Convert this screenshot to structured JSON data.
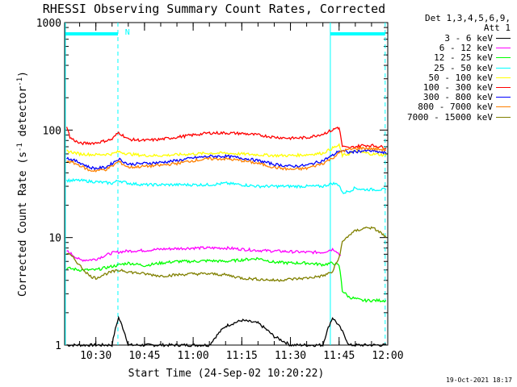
{
  "chart_data": {
    "type": "line",
    "title": "RHESSI Observing Summary Count Rates, Corrected",
    "xlabel": "Start Time (24-Sep-02 10:20:22)",
    "ylabel_parts": [
      "Corrected Count Rate (s",
      "-1",
      " detector",
      "-1",
      ")"
    ],
    "x_range_min": [
      20.37,
      120
    ],
    "y_range": [
      1,
      1000
    ],
    "y_scale": "log",
    "x_ticks": [
      {
        "min": 30,
        "label": "10:30"
      },
      {
        "min": 45,
        "label": "10:45"
      },
      {
        "min": 60,
        "label": "11:00"
      },
      {
        "min": 75,
        "label": "11:15"
      },
      {
        "min": 90,
        "label": "11:30"
      },
      {
        "min": 105,
        "label": "11:45"
      },
      {
        "min": 120,
        "label": "12:00"
      }
    ],
    "y_ticks": [
      {
        "val": 1,
        "label": "1"
      },
      {
        "val": 10,
        "label": "10"
      },
      {
        "val": 100,
        "label": "100"
      },
      {
        "val": 1000,
        "label": "1000"
      }
    ],
    "legend_header": [
      "Det 1,3,4,5,6,9,",
      "Att 1"
    ],
    "series": [
      {
        "name": "3 - 6 keV",
        "color": "#000000",
        "x": [
          21,
          25,
          30,
          35,
          37,
          40,
          45,
          50,
          55,
          60,
          65,
          70,
          75,
          80,
          85,
          90,
          95,
          100,
          103,
          105,
          108,
          110,
          112,
          115,
          118,
          119.5
        ],
        "y": [
          1,
          1,
          1,
          1,
          1.8,
          1,
          1,
          1,
          1,
          1,
          1,
          1.5,
          1.7,
          1.6,
          1.2,
          1,
          1,
          1,
          1.8,
          1.5,
          1,
          1,
          1,
          1,
          1,
          1
        ]
      },
      {
        "name": "6 - 12 keV",
        "color": "#ff00ff",
        "x": [
          21,
          25,
          28,
          30,
          35,
          38,
          40,
          45,
          50,
          55,
          60,
          65,
          70,
          75,
          80,
          85,
          90,
          95,
          100,
          103,
          104,
          105,
          105.5
        ],
        "y": [
          7.5,
          6.2,
          6.2,
          6.3,
          7.2,
          7.4,
          7.5,
          7.6,
          7.8,
          7.9,
          8,
          8,
          8,
          7.8,
          7.6,
          7.5,
          7.4,
          7.3,
          7.3,
          7.8,
          7.6,
          7,
          6.8
        ]
      },
      {
        "name": "12 - 25 keV",
        "color": "#00ff00",
        "x": [
          21,
          25,
          30,
          35,
          40,
          45,
          50,
          55,
          60,
          65,
          70,
          75,
          80,
          85,
          90,
          95,
          100,
          103,
          105,
          106,
          108,
          110,
          112,
          115,
          118,
          119.5
        ],
        "y": [
          5.2,
          5,
          5,
          5.4,
          5.8,
          5.5,
          5.8,
          6,
          6,
          6.1,
          6,
          6.2,
          6.4,
          5.9,
          5.8,
          5.8,
          5.6,
          5.8,
          5.5,
          3.2,
          2.8,
          2.7,
          2.6,
          2.6,
          2.6,
          2.6
        ]
      },
      {
        "name": "25 - 50 keV",
        "color": "#00ffff",
        "x": [
          21,
          25,
          30,
          35,
          37,
          40,
          45,
          50,
          55,
          60,
          65,
          70,
          75,
          80,
          85,
          90,
          95,
          100,
          103,
          105,
          106,
          108,
          110,
          112,
          115,
          118,
          119.5
        ],
        "y": [
          34,
          34,
          33,
          32,
          34,
          32,
          31,
          31,
          31,
          31,
          31,
          32,
          31,
          30,
          30,
          30,
          30,
          30,
          32,
          31,
          26,
          27,
          29,
          28,
          28,
          28,
          28
        ]
      },
      {
        "name": "50 - 100 keV",
        "color": "#ffff00",
        "x": [
          21,
          25,
          30,
          35,
          37,
          40,
          45,
          50,
          55,
          60,
          65,
          70,
          75,
          80,
          85,
          90,
          95,
          100,
          103,
          105,
          106,
          108,
          110,
          112,
          115,
          118,
          119.5
        ],
        "y": [
          64,
          60,
          59,
          60,
          63,
          60,
          58,
          58,
          59,
          60,
          61,
          61,
          60,
          59,
          58,
          58,
          59,
          61,
          68,
          72,
          58,
          60,
          64,
          62,
          60,
          59,
          58
        ]
      },
      {
        "name": "100 - 300 keV",
        "color": "#ff0000",
        "x": [
          21,
          22,
          25,
          30,
          35,
          37,
          40,
          45,
          50,
          55,
          60,
          65,
          70,
          75,
          80,
          85,
          90,
          95,
          100,
          103,
          104.5,
          105,
          106,
          108,
          110,
          112,
          115,
          118,
          119.5
        ],
        "y": [
          110,
          85,
          75,
          76,
          82,
          95,
          82,
          80,
          82,
          86,
          90,
          94,
          94,
          93,
          90,
          86,
          84,
          85,
          92,
          100,
          106,
          104,
          70,
          68,
          70,
          72,
          72,
          70,
          68
        ]
      },
      {
        "name": "300 - 800 keV",
        "color": "#0000ff",
        "x": [
          21,
          25,
          28,
          30,
          33,
          35,
          37,
          40,
          45,
          50,
          55,
          60,
          65,
          70,
          75,
          80,
          85,
          90,
          95,
          100,
          103,
          105,
          106,
          108,
          110,
          112,
          115,
          118,
          119.5
        ],
        "y": [
          55,
          50,
          45,
          44,
          45,
          49,
          54,
          48,
          49,
          50,
          52,
          55,
          57,
          57,
          55,
          52,
          48,
          46,
          47,
          52,
          58,
          64,
          64,
          62,
          63,
          64,
          64,
          62,
          61
        ]
      },
      {
        "name": "800 - 7000 keV",
        "color": "#ff8000",
        "x": [
          21,
          25,
          28,
          30,
          33,
          35,
          37,
          40,
          45,
          50,
          55,
          60,
          65,
          70,
          75,
          80,
          85,
          90,
          95,
          100,
          103,
          105,
          106,
          108,
          110,
          112,
          115,
          118,
          119.5
        ],
        "y": [
          52,
          47,
          42,
          42,
          43,
          46,
          51,
          45,
          46,
          47,
          49,
          52,
          54,
          54,
          52,
          49,
          45,
          43,
          44,
          49,
          55,
          61,
          64,
          66,
          67,
          68,
          67,
          66,
          65
        ]
      },
      {
        "name": "7000 - 15000 keV",
        "color": "#808000",
        "x": [
          21,
          23,
          25,
          28,
          30,
          33,
          35,
          38,
          40,
          45,
          50,
          55,
          60,
          65,
          70,
          75,
          80,
          85,
          90,
          95,
          100,
          103,
          105,
          106,
          108,
          110,
          112,
          114,
          116,
          118,
          119.5
        ],
        "y": [
          7.2,
          6.5,
          5.5,
          4.4,
          4.2,
          4.6,
          4.8,
          5,
          4.8,
          4.6,
          4.4,
          4.5,
          4.6,
          4.6,
          4.5,
          4.2,
          4.1,
          4,
          4.1,
          4.2,
          4.4,
          4.8,
          6.5,
          9,
          10.5,
          11.5,
          12,
          12.5,
          12,
          11,
          10
        ]
      }
    ],
    "vertical_lines": [
      {
        "x_min": 20.6,
        "style": "solid"
      },
      {
        "x_min": 36.8,
        "style": "dashed"
      },
      {
        "x_min": 102.3,
        "style": "solid"
      },
      {
        "x_min": 119.2,
        "style": "dashed"
      }
    ],
    "bars_top": [
      {
        "x_from_min": 20.6,
        "x_to_min": 36.8,
        "label": ""
      },
      {
        "x_from_min": 102.3,
        "x_to_min": 119.2,
        "label": ""
      }
    ],
    "night_marker": {
      "x_min": 38.0,
      "label": "N"
    }
  },
  "footer_timestamp": "19-Oct-2021 18:17",
  "colors": {
    "overlay": "#00ffff",
    "background": "#ffffff",
    "axis": "#000000"
  }
}
